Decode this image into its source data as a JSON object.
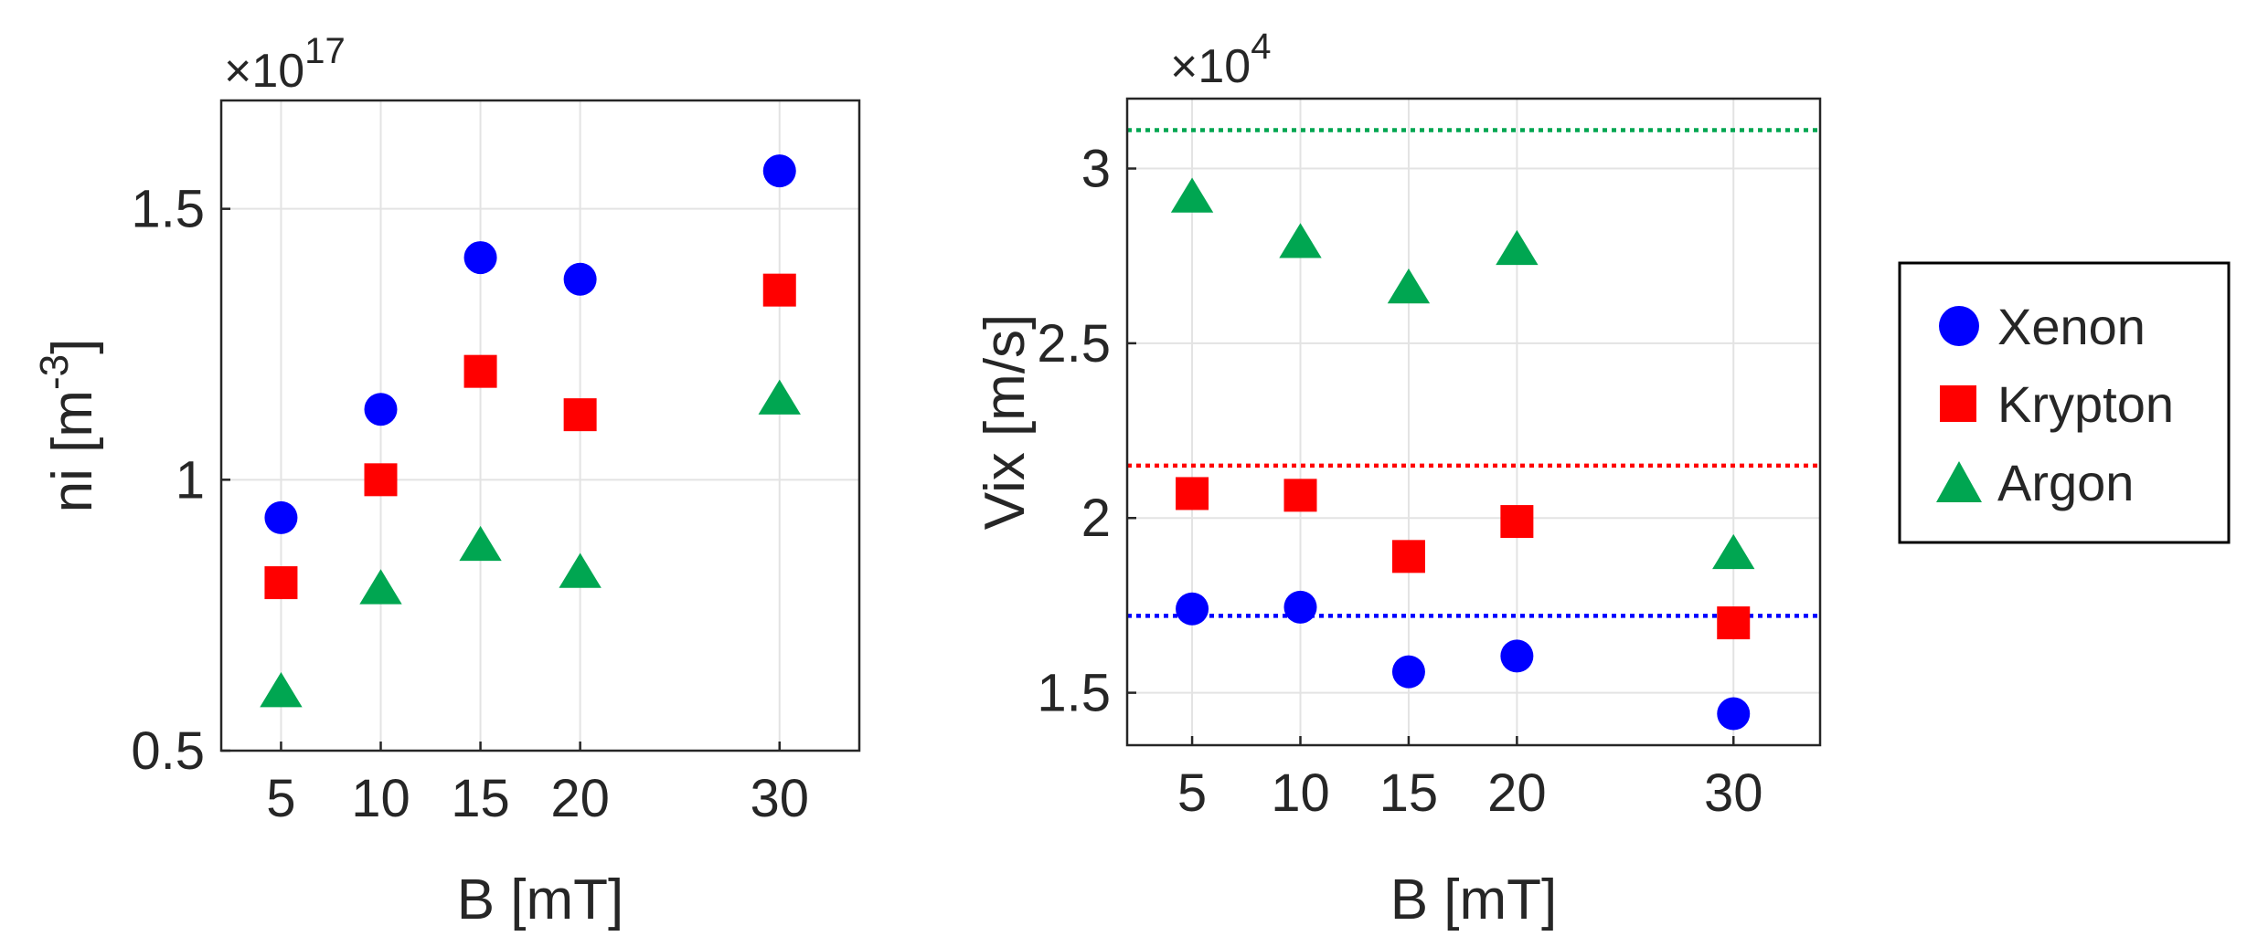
{
  "chart_data": [
    {
      "type": "scatter",
      "title": "",
      "multiplier_base": "10",
      "multiplier_exp": "17",
      "xlabel": "B [mT]",
      "ylabel_main": "ni [m",
      "ylabel_sup": "-3",
      "ylabel_end": "]",
      "xlim": [
        2,
        34
      ],
      "ylim": [
        0.5,
        1.7
      ],
      "xticks": [
        5,
        10,
        15,
        20,
        30
      ],
      "xtick_labels": [
        "5",
        "10",
        "15",
        "20",
        "30"
      ],
      "yticks": [
        0.5,
        1,
        1.5
      ],
      "ytick_labels": [
        "0.5",
        "1",
        "1.5"
      ],
      "grid": true,
      "series": [
        {
          "name": "Xenon",
          "marker": "circle",
          "color": "#0000ff",
          "x": [
            5,
            10,
            15,
            20,
            30
          ],
          "y": [
            0.93,
            1.13,
            1.41,
            1.37,
            1.57
          ]
        },
        {
          "name": "Krypton",
          "marker": "square",
          "color": "#ff0000",
          "x": [
            5,
            10,
            15,
            20,
            30
          ],
          "y": [
            0.81,
            1.0,
            1.2,
            1.12,
            1.35
          ]
        },
        {
          "name": "Argon",
          "marker": "triangle",
          "color": "#00a651",
          "x": [
            5,
            10,
            15,
            20,
            30
          ],
          "y": [
            0.61,
            0.8,
            0.88,
            0.83,
            1.15
          ]
        }
      ]
    },
    {
      "type": "scatter",
      "title": "",
      "multiplier_base": "10",
      "multiplier_exp": "4",
      "xlabel": "B [mT]",
      "ylabel": "Vix [m/s]",
      "xlim": [
        2,
        34
      ],
      "ylim": [
        1.35,
        3.2
      ],
      "xticks": [
        5,
        10,
        15,
        20,
        30
      ],
      "xtick_labels": [
        "5",
        "10",
        "15",
        "20",
        "30"
      ],
      "yticks": [
        1.5,
        2,
        2.5,
        3
      ],
      "ytick_labels": [
        "1.5",
        "2",
        "2.5",
        "3"
      ],
      "grid": true,
      "reference_lines": [
        {
          "series": "Argon",
          "y": 3.11,
          "color": "#00a651"
        },
        {
          "series": "Krypton",
          "y": 2.15,
          "color": "#ff0000"
        },
        {
          "series": "Xenon",
          "y": 1.72,
          "color": "#0000ff"
        }
      ],
      "series": [
        {
          "name": "Xenon",
          "marker": "circle",
          "color": "#0000ff",
          "x": [
            5,
            10,
            15,
            20,
            30
          ],
          "y": [
            1.74,
            1.745,
            1.56,
            1.605,
            1.44
          ]
        },
        {
          "name": "Krypton",
          "marker": "square",
          "color": "#ff0000",
          "x": [
            5,
            10,
            15,
            20,
            30
          ],
          "y": [
            2.07,
            2.065,
            1.89,
            1.99,
            1.7
          ]
        },
        {
          "name": "Argon",
          "marker": "triangle",
          "color": "#00a651",
          "x": [
            5,
            10,
            15,
            20,
            30
          ],
          "y": [
            2.92,
            2.79,
            2.66,
            2.77,
            1.9
          ]
        }
      ]
    }
  ],
  "legend": {
    "placement": "right",
    "entries": [
      {
        "label": "Xenon",
        "marker": "circle",
        "color": "#0000ff"
      },
      {
        "label": "Krypton",
        "marker": "square",
        "color": "#ff0000"
      },
      {
        "label": "Argon",
        "marker": "triangle",
        "color": "#00a651"
      }
    ]
  }
}
